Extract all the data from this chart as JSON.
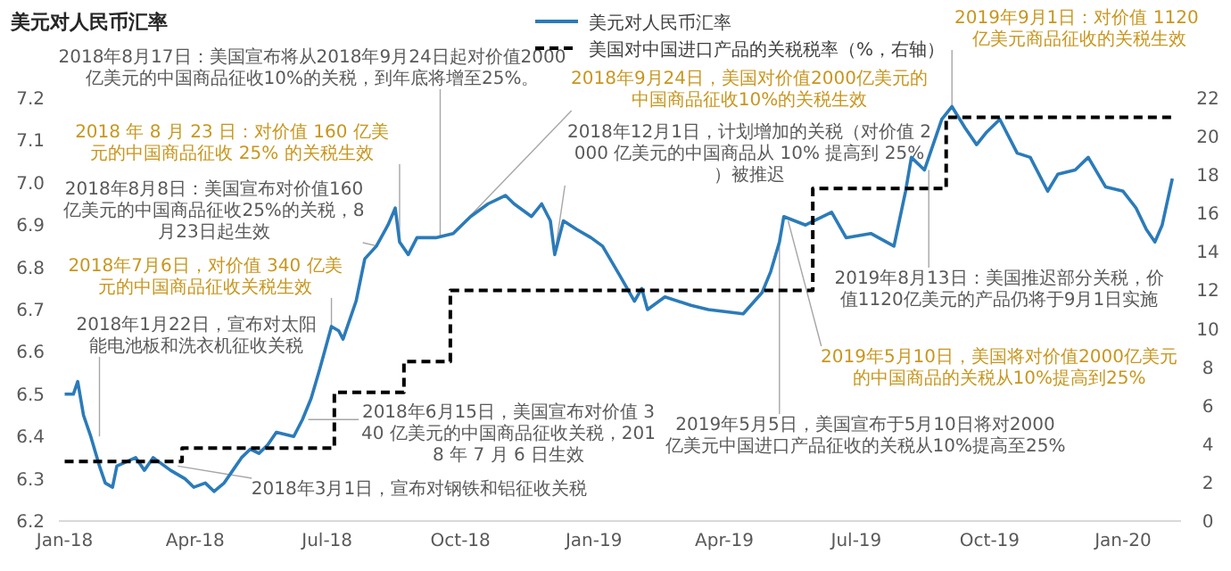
{
  "chart_data": {
    "type": "line",
    "ylabel": "美元对人民币汇率",
    "legend": "top",
    "xlim": [
      "2017-12-28",
      "2020-02-10"
    ],
    "xticks": [
      {
        "value": "2018-01-01",
        "label": "Jan-18"
      },
      {
        "value": "2018-04-01",
        "label": "Apr-18"
      },
      {
        "value": "2018-07-01",
        "label": "Jul-18"
      },
      {
        "value": "2018-10-01",
        "label": "Oct-18"
      },
      {
        "value": "2019-01-01",
        "label": "Jan-19"
      },
      {
        "value": "2019-04-01",
        "label": "Apr-19"
      },
      {
        "value": "2019-07-01",
        "label": "Jul-19"
      },
      {
        "value": "2019-10-01",
        "label": "Oct-19"
      },
      {
        "value": "2020-01-01",
        "label": "Jan-20"
      }
    ],
    "ylim": [
      6.2,
      7.2
    ],
    "yticks": [
      6.2,
      6.3,
      6.4,
      6.5,
      6.6,
      6.7,
      6.8,
      6.9,
      {
        "value": 7,
        "label": "7.0"
      },
      7.1,
      7.2
    ],
    "y2lim": [
      0,
      22
    ],
    "y2ticks": [
      0,
      2,
      4,
      6,
      8,
      10,
      12,
      14,
      16,
      18,
      20,
      22
    ],
    "series": [
      {
        "name": "美元对人民币汇率",
        "color": "#2b7bb9",
        "line_style": "solid",
        "x": [
          "2018-01-01",
          "2018-01-07",
          "2018-01-10",
          "2018-01-14",
          "2018-01-19",
          "2018-01-25",
          "2018-01-29",
          "2018-02-03",
          "2018-02-06",
          "2018-02-19",
          "2018-02-25",
          "2018-03-03",
          "2018-03-15",
          "2018-03-25",
          "2018-03-31",
          "2018-04-08",
          "2018-04-14",
          "2018-04-21",
          "2018-04-27",
          "2018-05-03",
          "2018-05-09",
          "2018-05-15",
          "2018-05-21",
          "2018-05-27",
          "2018-06-08",
          "2018-06-14",
          "2018-06-20",
          "2018-06-26",
          "2018-07-04",
          "2018-07-09",
          "2018-07-12",
          "2018-07-21",
          "2018-07-27",
          "2018-08-04",
          "2018-08-12",
          "2018-08-17",
          "2018-08-20",
          "2018-08-26",
          "2018-09-01",
          "2018-09-14",
          "2018-09-26",
          "2018-10-08",
          "2018-10-20",
          "2018-11-01",
          "2018-11-07",
          "2018-11-19",
          "2018-11-26",
          "2018-12-02",
          "2018-12-05",
          "2018-12-11",
          "2018-12-20",
          "2018-12-30",
          "2019-01-07",
          "2019-01-19",
          "2019-01-29",
          "2019-02-03",
          "2019-02-07",
          "2019-02-19",
          "2019-03-09",
          "2019-03-21",
          "2019-04-14",
          "2019-04-27",
          "2019-05-03",
          "2019-05-09",
          "2019-05-12",
          "2019-05-27",
          "2019-06-14",
          "2019-06-24",
          "2019-07-11",
          "2019-07-27",
          "2019-08-04",
          "2019-08-08",
          "2019-08-17",
          "2019-08-29",
          "2019-09-05",
          "2019-09-14",
          "2019-09-22",
          "2019-09-29",
          "2019-10-08",
          "2019-10-20",
          "2019-10-29",
          "2019-11-10",
          "2019-11-17",
          "2019-11-29",
          "2019-12-08",
          "2019-12-20",
          "2020-01-01",
          "2020-01-10",
          "2020-01-17",
          "2020-01-23",
          "2020-01-28",
          "2020-02-04"
        ],
        "values": [
          6.5,
          6.5,
          6.53,
          6.45,
          6.4,
          6.33,
          6.29,
          6.28,
          6.33,
          6.35,
          6.32,
          6.35,
          6.32,
          6.3,
          6.28,
          6.29,
          6.27,
          6.29,
          6.32,
          6.35,
          6.37,
          6.36,
          6.38,
          6.41,
          6.4,
          6.44,
          6.49,
          6.56,
          6.66,
          6.65,
          6.63,
          6.72,
          6.82,
          6.85,
          6.9,
          6.94,
          6.86,
          6.83,
          6.87,
          6.87,
          6.88,
          6.92,
          6.95,
          6.97,
          6.95,
          6.92,
          6.95,
          6.91,
          6.83,
          6.91,
          6.89,
          6.87,
          6.85,
          6.78,
          6.72,
          6.75,
          6.7,
          6.73,
          6.71,
          6.7,
          6.69,
          6.74,
          6.79,
          6.86,
          6.92,
          6.9,
          6.93,
          6.87,
          6.88,
          6.85,
          6.98,
          7.06,
          7.03,
          7.15,
          7.18,
          7.13,
          7.09,
          7.12,
          7.15,
          7.07,
          7.06,
          6.98,
          7.02,
          7.03,
          7.06,
          6.99,
          6.98,
          6.94,
          6.89,
          6.86,
          6.9,
          7.01
        ]
      },
      {
        "name": "美国对中国进口产品的关税税率（%，右轴）",
        "type": "step",
        "axis": "y2",
        "color": "#000000",
        "line_style": "dashed",
        "x": [
          "2018-01-01",
          "2018-03-23",
          "2018-07-06",
          "2018-08-23",
          "2018-09-24",
          "2019-06-01",
          "2019-09-01",
          "2020-02-04"
        ],
        "values": [
          3.1,
          3.8,
          6.7,
          8.3,
          12.0,
          17.3,
          21.0,
          21.0
        ]
      }
    ],
    "annotations": [
      {
        "text": "2018年1月22日，宣布对太阳能电池板和洗衣机征收关税",
        "x": "2018-01-25",
        "y": 6.4
      },
      {
        "text": "2018年3月1日，宣布对钢铁和铝征收关税",
        "x": "2018-03-20",
        "y": 6.33
      },
      {
        "text": "2018年6月15日，美国宣布对价值 340 亿美元的中国商品征收关税，2018 年 7 月 6 日生效",
        "x": "2018-06-18",
        "y": 6.44
      },
      {
        "text": "2018年7月6日，对价值 340 亿美元的中国商品征收关税生效",
        "x": "2018-07-04",
        "y": 6.66
      },
      {
        "text": "2018年8月8日：美国宣布对价值160亿美元的中国商品征收25%的关税，8月23日起生效",
        "x": "2018-08-05",
        "y": 6.85
      },
      {
        "text": "2018 年 8 月 23 日：对价值 160 亿美元的中国商品征收 25% 的关税生效",
        "x": "2018-08-20",
        "y": 6.86
      },
      {
        "text": "2018年8月17日：美国宣布将从2018年9月24日起对价值2000亿美元的中国商品征收10%的关税，到年底将增至25%。",
        "x": "2018-09-17",
        "y": 6.87
      },
      {
        "text": "2018年9月24日，美国对价值2000亿美元的中国商品征收10%的关税生效",
        "x": "2018-09-26",
        "y": 6.88
      },
      {
        "text": "2018年12月1日，计划增加的关税（对价值 2000 亿美元的中国商品从 10% 提高到 25%）被推迟",
        "x": "2018-12-05",
        "y": 6.83
      },
      {
        "text": "2019年5月5日，美国宣布于5月10日将对2000亿美元中国进口产品征收的关税从10%提高至25%",
        "x": "2019-05-09",
        "y": 6.86
      },
      {
        "text": "2019年5月10日，美国将对价值2000亿美元的中国商品的关税从10%提高到25%",
        "x": "2019-05-15",
        "y": 6.91
      },
      {
        "text": "2019年8月13日：美国推迟部分关税，价值1120亿美元的产品仍将于9月1日实施",
        "x": "2019-08-20",
        "y": 7.03
      },
      {
        "text": "2019年9月1日：对价值 1120 亿美元商品征收的关税生效",
        "x": "2019-09-05",
        "y": 7.18
      }
    ]
  }
}
